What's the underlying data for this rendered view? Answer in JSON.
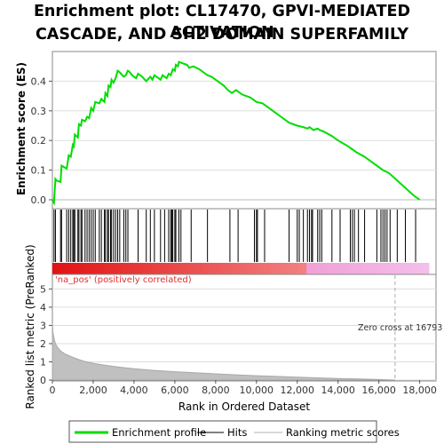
{
  "title_line1": "Enrichment plot: CL17470, GPVI-MEDIATED ACTIVATION",
  "title_line2": "CASCADE, AND SH2 DOMAIN SUPERFAMILY",
  "chart_data": [
    {
      "type": "line",
      "ylabel": "Enrichment score (ES)",
      "xlim": [
        0,
        18800
      ],
      "ylim": [
        -0.03,
        0.5
      ],
      "yticks": [
        0.0,
        0.1,
        0.2,
        0.3,
        0.4
      ],
      "ytick_labels": [
        "0.0",
        "0.1",
        "0.2",
        "0.3",
        "0.4"
      ],
      "series": [
        {
          "name": "Enrichment profile",
          "color": "#00dd00",
          "x": [
            0,
            80,
            150,
            200,
            400,
            450,
            700,
            800,
            900,
            1000,
            1050,
            1100,
            1250,
            1300,
            1400,
            1450,
            1600,
            1700,
            1800,
            1900,
            2000,
            2100,
            2300,
            2400,
            2550,
            2600,
            2700,
            2750,
            2850,
            2900,
            3000,
            3100,
            3200,
            3300,
            3500,
            3600,
            3700,
            3800,
            3900,
            4100,
            4200,
            4400,
            4600,
            4800,
            4900,
            5000,
            5100,
            5300,
            5400,
            5500,
            5600,
            5700,
            5800,
            5900,
            6000,
            6050,
            6150,
            6200,
            6400,
            6600,
            6700,
            6900,
            7200,
            7500,
            7600,
            7800,
            8100,
            8400,
            8600,
            8800,
            9000,
            9300,
            9700,
            9900,
            10000,
            10300,
            10700,
            11200,
            11600,
            12000,
            12300,
            12500,
            12600,
            12700,
            12800,
            13000,
            13100,
            13300,
            13700,
            14000,
            14500,
            14900,
            15300,
            15800,
            16200,
            16500,
            16900,
            17300,
            17700,
            18000
          ],
          "y": [
            0.0,
            -0.01,
            0.07,
            0.065,
            0.06,
            0.115,
            0.105,
            0.15,
            0.145,
            0.185,
            0.18,
            0.22,
            0.21,
            0.255,
            0.25,
            0.27,
            0.265,
            0.28,
            0.275,
            0.31,
            0.3,
            0.33,
            0.325,
            0.34,
            0.33,
            0.36,
            0.35,
            0.385,
            0.38,
            0.405,
            0.395,
            0.41,
            0.435,
            0.43,
            0.415,
            0.42,
            0.435,
            0.43,
            0.42,
            0.41,
            0.425,
            0.415,
            0.4,
            0.415,
            0.405,
            0.42,
            0.415,
            0.405,
            0.42,
            0.415,
            0.41,
            0.425,
            0.42,
            0.44,
            0.435,
            0.455,
            0.45,
            0.465,
            0.46,
            0.455,
            0.445,
            0.45,
            0.44,
            0.425,
            0.42,
            0.415,
            0.4,
            0.385,
            0.37,
            0.36,
            0.37,
            0.355,
            0.345,
            0.335,
            0.33,
            0.325,
            0.305,
            0.28,
            0.26,
            0.25,
            0.245,
            0.24,
            0.245,
            0.24,
            0.235,
            0.24,
            0.235,
            0.23,
            0.215,
            0.2,
            0.18,
            0.16,
            0.145,
            0.12,
            0.1,
            0.09,
            0.065,
            0.04,
            0.015,
            0.0
          ]
        }
      ]
    },
    {
      "type": "scatter",
      "name": "Hits",
      "xlim": [
        0,
        18800
      ],
      "hits": [
        80,
        150,
        400,
        450,
        700,
        800,
        900,
        1000,
        1050,
        1100,
        1250,
        1300,
        1400,
        1450,
        1600,
        1700,
        1800,
        1900,
        2000,
        2100,
        2300,
        2400,
        2550,
        2600,
        2700,
        2750,
        2850,
        2900,
        3000,
        3100,
        3200,
        3300,
        3500,
        3600,
        3700,
        4200,
        4600,
        4800,
        5000,
        5300,
        5500,
        5700,
        5800,
        5850,
        5900,
        6000,
        6050,
        6200,
        6300,
        6800,
        7600,
        8700,
        9100,
        9900,
        10000,
        10050,
        10400,
        11600,
        12000,
        12100,
        12300,
        12500,
        12600,
        12700,
        12750,
        13000,
        13100,
        13200,
        13700,
        14100,
        14600,
        14700,
        14800,
        15000,
        15300,
        15900,
        16100,
        16200,
        16300,
        16400,
        16550,
        16900,
        17300,
        17800
      ]
    },
    {
      "type": "area",
      "ylabel": "Ranked list metric (PreRanked)",
      "xlabel": "Rank in Ordered Dataset",
      "xlim": [
        0,
        18800
      ],
      "ylim": [
        0,
        5.8
      ],
      "yticks": [
        0,
        1,
        2,
        3,
        4,
        5
      ],
      "ytick_labels": [
        "0",
        "1",
        "2",
        "3",
        "4",
        "5"
      ],
      "xticks": [
        0,
        2000,
        4000,
        6000,
        8000,
        10000,
        12000,
        14000,
        16000,
        18000
      ],
      "xtick_labels": [
        "0",
        "2,000",
        "4,000",
        "6,000",
        "8,000",
        "10,000",
        "12,000",
        "14,000",
        "16,000",
        "18,000"
      ],
      "series": [
        {
          "name": "Ranking metric scores",
          "color": "#b0b0b0",
          "x": [
            0,
            30,
            80,
            150,
            250,
            400,
            600,
            800,
            1000,
            1300,
            1600,
            2000,
            2500,
            3000,
            3500,
            4000,
            5000,
            6000,
            7000,
            8000,
            9000,
            10000,
            11000,
            12000,
            13000,
            14000,
            15000,
            16000,
            16793
          ],
          "y": [
            3.1,
            2.6,
            2.3,
            2.0,
            1.8,
            1.6,
            1.45,
            1.35,
            1.25,
            1.12,
            1.02,
            0.92,
            0.83,
            0.75,
            0.68,
            0.62,
            0.53,
            0.46,
            0.4,
            0.34,
            0.29,
            0.24,
            0.2,
            0.16,
            0.12,
            0.09,
            0.06,
            0.03,
            0.0
          ]
        }
      ],
      "positive_label": "'na_pos' (positively correlated)",
      "zero_cross_label": "Zero cross at 16793",
      "zero_cross": 16793
    }
  ],
  "legend": {
    "placement": "bottom",
    "items": [
      {
        "label": "Enrichment profile",
        "color": "#00dd00"
      },
      {
        "label": "Hits",
        "color": "#000000"
      },
      {
        "label": "Ranking metric scores",
        "color": "#b0b0b0"
      }
    ]
  }
}
